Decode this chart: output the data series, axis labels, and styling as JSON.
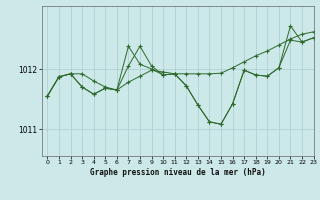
{
  "title": "Graphe pression niveau de la mer (hPa)",
  "bg_color": "#cce8e8",
  "line_color": "#2d6a2d",
  "grid_color": "#aacece",
  "ylim": [
    1010.55,
    1013.05
  ],
  "xlim": [
    -0.5,
    23
  ],
  "yticks": [
    1011,
    1012
  ],
  "xticks": [
    0,
    1,
    2,
    3,
    4,
    5,
    6,
    7,
    8,
    9,
    10,
    11,
    12,
    13,
    14,
    15,
    16,
    17,
    18,
    19,
    20,
    21,
    22,
    23
  ],
  "series": [
    [
      1011.55,
      1011.87,
      1011.92,
      1011.92,
      1011.8,
      1011.7,
      1011.65,
      1011.78,
      1011.88,
      1011.98,
      1011.95,
      1011.92,
      1011.92,
      1011.92,
      1011.92,
      1011.93,
      1012.02,
      1012.12,
      1012.22,
      1012.3,
      1012.4,
      1012.5,
      1012.58,
      1012.62
    ],
    [
      1011.55,
      1011.87,
      1011.92,
      1011.7,
      1011.58,
      1011.68,
      1011.65,
      1012.05,
      1012.38,
      1012.05,
      1011.9,
      1011.92,
      1011.72,
      1011.4,
      1011.12,
      1011.08,
      1011.42,
      1011.98,
      1011.9,
      1011.88,
      1012.02,
      1012.48,
      1012.45,
      1012.52
    ],
    [
      1011.55,
      1011.87,
      1011.92,
      1011.7,
      1011.58,
      1011.68,
      1011.65,
      1012.38,
      1012.08,
      1012.0,
      1011.9,
      1011.92,
      1011.72,
      1011.4,
      1011.12,
      1011.08,
      1011.42,
      1011.98,
      1011.9,
      1011.88,
      1012.02,
      1012.72,
      1012.45,
      1012.52
    ]
  ]
}
